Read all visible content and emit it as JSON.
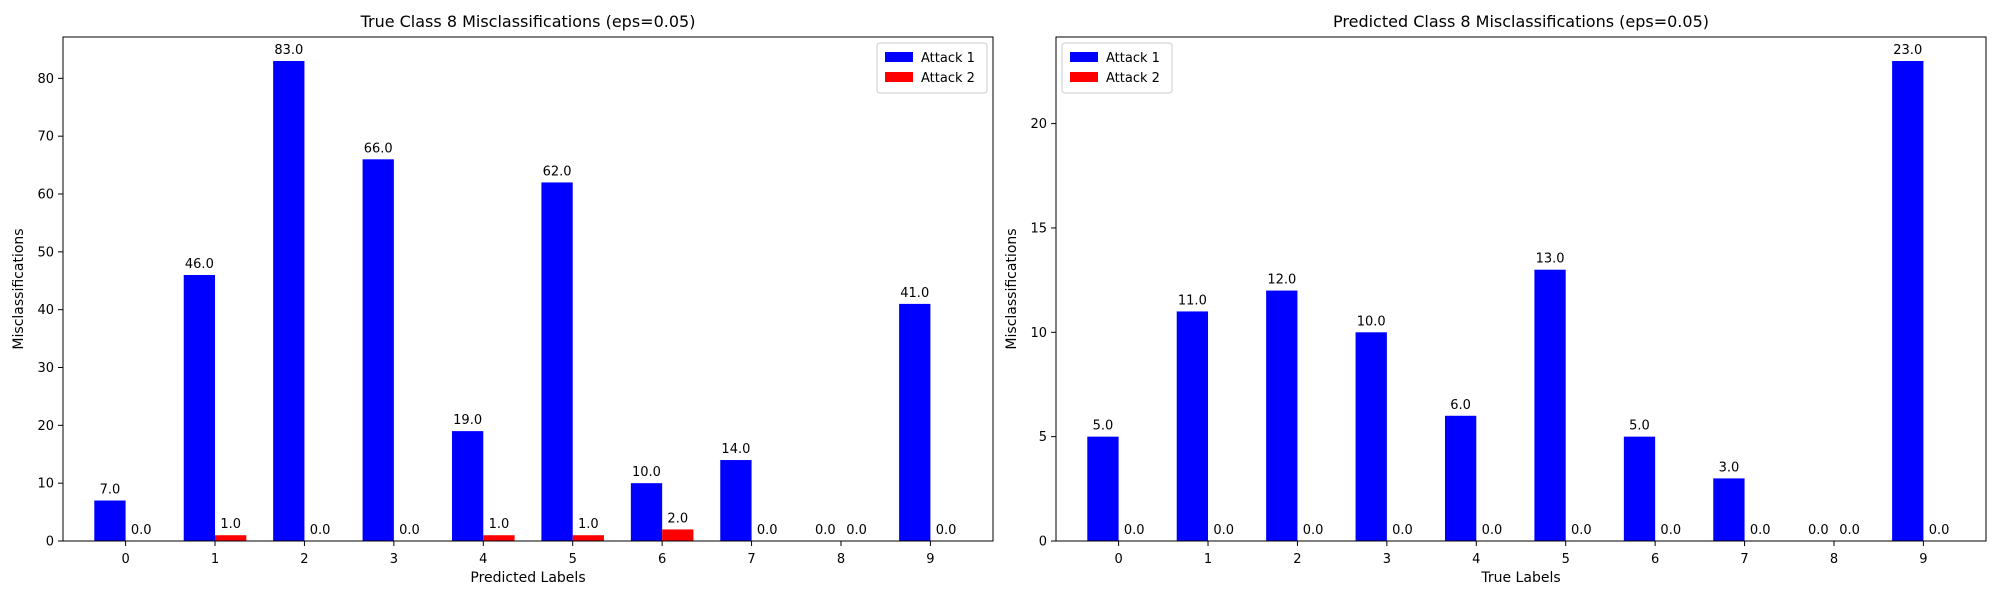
{
  "colors": {
    "attack1": "#0000ff",
    "attack2": "#ff0000"
  },
  "chart_data": [
    {
      "type": "bar",
      "title": "True Class 8 Misclassifications (eps=0.05)",
      "xlabel": "Predicted Labels",
      "ylabel": "Misclassifications",
      "categories": [
        "0",
        "1",
        "2",
        "3",
        "4",
        "5",
        "6",
        "7",
        "8",
        "9"
      ],
      "series": [
        {
          "name": "Attack 1",
          "values": [
            7,
            46,
            83,
            66,
            19,
            62,
            10,
            14,
            0,
            41
          ]
        },
        {
          "name": "Attack 2",
          "values": [
            0,
            1,
            0,
            0,
            1,
            1,
            2,
            0,
            0,
            0
          ]
        }
      ],
      "value_labels": [
        [
          "7.0",
          "46.0",
          "83.0",
          "66.0",
          "19.0",
          "62.0",
          "10.0",
          "14.0",
          "0.0",
          "41.0"
        ],
        [
          "0.0",
          "1.0",
          "0.0",
          "0.0",
          "1.0",
          "1.0",
          "2.0",
          "0.0",
          "0.0",
          "0.0"
        ]
      ],
      "ylim": [
        0,
        87.15
      ],
      "yticks": [
        0,
        10,
        20,
        30,
        40,
        50,
        60,
        70,
        80
      ],
      "ytick_labels": [
        "0",
        "10",
        "20",
        "30",
        "40",
        "50",
        "60",
        "70",
        "80"
      ],
      "legend": "top-right",
      "grid": false
    },
    {
      "type": "bar",
      "title": "Predicted Class 8 Misclassifications (eps=0.05)",
      "xlabel": "True Labels",
      "ylabel": "Misclassifications",
      "categories": [
        "0",
        "1",
        "2",
        "3",
        "4",
        "5",
        "6",
        "7",
        "8",
        "9"
      ],
      "series": [
        {
          "name": "Attack 1",
          "values": [
            5,
            11,
            12,
            10,
            6,
            13,
            5,
            3,
            0,
            23
          ]
        },
        {
          "name": "Attack 2",
          "values": [
            0,
            0,
            0,
            0,
            0,
            0,
            0,
            0,
            0,
            0
          ]
        }
      ],
      "value_labels": [
        [
          "5.0",
          "11.0",
          "12.0",
          "10.0",
          "6.0",
          "13.0",
          "5.0",
          "3.0",
          "0.0",
          "23.0"
        ],
        [
          "0.0",
          "0.0",
          "0.0",
          "0.0",
          "0.0",
          "0.0",
          "0.0",
          "0.0",
          "0.0",
          "0.0"
        ]
      ],
      "ylim": [
        0,
        24.15
      ],
      "yticks": [
        0,
        5,
        10,
        15,
        20
      ],
      "ytick_labels": [
        "0",
        "5",
        "10",
        "15",
        "20"
      ],
      "legend": "top-left",
      "grid": false
    }
  ]
}
